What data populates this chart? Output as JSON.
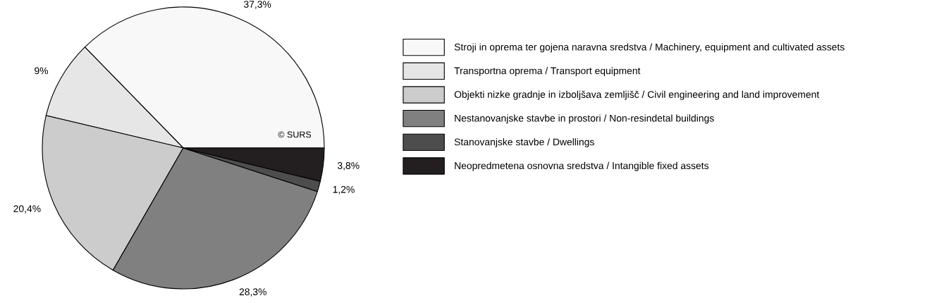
{
  "chart_data": {
    "type": "pie",
    "categories": [
      "Stroji in oprema ter gojena naravna sredstva / Machinery, equipment and cultivated assets",
      "Transportna oprema / Transport equipment",
      "Objekti nizke gradnje in izboljšava zemljišč / Civil engineering and land improvement",
      "Nestanovanjske stavbe in prostori / Non-resindetal buildings",
      "Stanovanjske stavbe / Dwellings",
      "Neopredmetena osnovna sredstva / Intangible fixed assets"
    ],
    "values": [
      37.3,
      9,
      20.4,
      28.3,
      1.2,
      3.8
    ],
    "value_labels": [
      "37,3%",
      "9%",
      "20,4%",
      "28,3%",
      "1,2%",
      "3,8%"
    ],
    "colors": [
      "#f8f8f8",
      "#e6e6e6",
      "#cccccc",
      "#808080",
      "#4d4d4d",
      "#231f20"
    ],
    "legend": "right",
    "annotations": [
      "© SURS"
    ]
  }
}
